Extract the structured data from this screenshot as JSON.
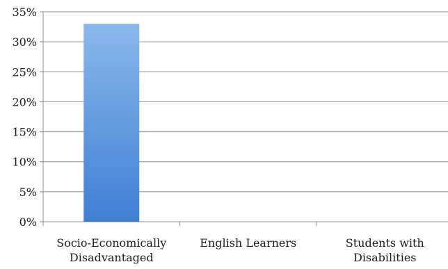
{
  "chart_data": {
    "type": "bar",
    "title": "",
    "xlabel": "",
    "ylabel": "",
    "categories": [
      [
        "Socio-Economically",
        "Disadvantaged"
      ],
      [
        "English Learners"
      ],
      [
        "Students with",
        "Disabilities"
      ]
    ],
    "values": [
      33,
      0,
      0
    ],
    "ylim": [
      0,
      35
    ],
    "yticks": [
      0,
      5,
      10,
      15,
      20,
      25,
      30,
      35
    ],
    "ytick_labels": [
      "0%",
      "5%",
      "10%",
      "15%",
      "20%",
      "25%",
      "30%",
      "35%"
    ],
    "grid": true,
    "legend": "none",
    "colors": {
      "bar_light": "#8ab8ec",
      "bar_dark": "#3f7fd4",
      "gridline": "#8c8c8c",
      "text": "#1a1a1a"
    }
  }
}
